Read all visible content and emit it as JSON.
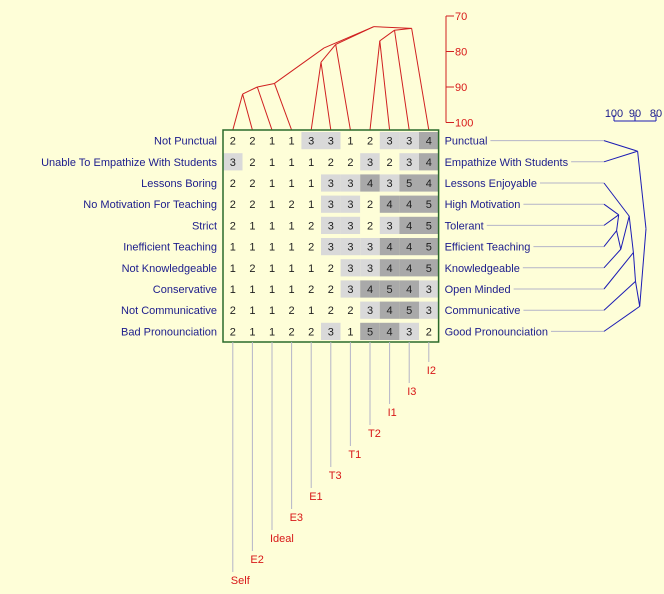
{
  "grid": {
    "rows": [
      {
        "left": "Not Punctual",
        "right": "Punctual",
        "values": [
          2,
          2,
          1,
          1,
          3,
          3,
          1,
          2,
          3,
          3,
          4
        ]
      },
      {
        "left": "Unable To Empathize With Students",
        "right": "Empathize With Students",
        "values": [
          3,
          2,
          1,
          1,
          1,
          2,
          2,
          3,
          2,
          3,
          4
        ]
      },
      {
        "left": "Lessons Boring",
        "right": "Lessons Enjoyable",
        "values": [
          2,
          2,
          1,
          1,
          1,
          3,
          3,
          4,
          3,
          5,
          4
        ]
      },
      {
        "left": "No Motivation For Teaching",
        "right": "High Motivation",
        "values": [
          2,
          2,
          1,
          2,
          1,
          3,
          3,
          2,
          4,
          4,
          5
        ]
      },
      {
        "left": "Strict",
        "right": "Tolerant",
        "values": [
          2,
          1,
          1,
          1,
          2,
          3,
          3,
          2,
          3,
          4,
          5
        ]
      },
      {
        "left": "Inefficient Teaching",
        "right": "Efficient Teaching",
        "values": [
          1,
          1,
          1,
          1,
          2,
          3,
          3,
          3,
          4,
          4,
          5
        ]
      },
      {
        "left": "Not Knowledgeable",
        "right": "Knowledgeable",
        "values": [
          1,
          2,
          1,
          1,
          1,
          2,
          3,
          3,
          4,
          4,
          5
        ]
      },
      {
        "left": "Conservative",
        "right": "Open Minded",
        "values": [
          1,
          1,
          1,
          1,
          2,
          2,
          3,
          4,
          5,
          4,
          3
        ]
      },
      {
        "left": "Not Communicative",
        "right": "Communicative",
        "values": [
          2,
          1,
          1,
          2,
          1,
          2,
          2,
          3,
          4,
          5,
          3
        ]
      },
      {
        "left": "Bad Pronounciation",
        "right": "Good Pronounciation",
        "values": [
          2,
          1,
          1,
          2,
          2,
          3,
          1,
          5,
          4,
          3,
          2
        ]
      }
    ],
    "elements": [
      "Self",
      "E2",
      "Ideal",
      "E3",
      "E1",
      "T3",
      "T1",
      "T2",
      "I1",
      "I3",
      "I2"
    ]
  },
  "scales": {
    "element_ticks": [
      "70",
      "80",
      "90",
      "100"
    ],
    "construct_ticks": [
      "100",
      "90",
      "80"
    ]
  },
  "colors": {
    "background": "#fefed8",
    "text_blue": "#1c1c8c",
    "text_red": "#d81818",
    "tree_red": "#d02020",
    "tree_blue": "#1c1cb4",
    "grid_border": "#2a6a2a",
    "shade_1": "#fefed8",
    "shade_2": "#fefed8",
    "shade_3": "#d9d9d9",
    "shade_4": "#a9a9a9",
    "shade_5": "#a9a9a9"
  }
}
